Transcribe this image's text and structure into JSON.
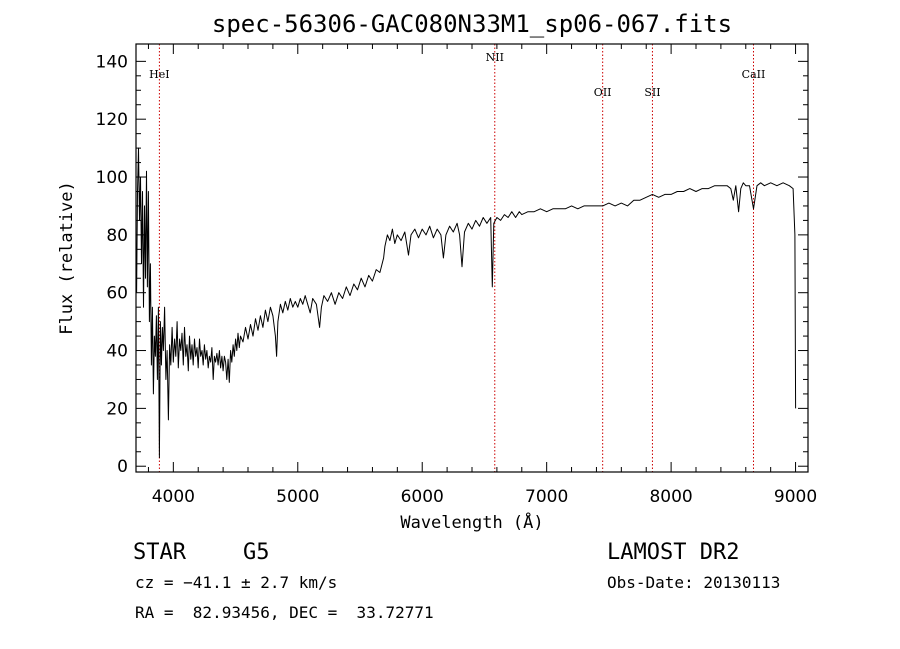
{
  "chart_data": {
    "type": "line",
    "title": "spec-56306-GAC080N33M1_sp06-067.fits",
    "xlabel": "Wavelength (Å)",
    "ylabel": "Flux (relative)",
    "xlim": [
      3700,
      9100
    ],
    "ylim": [
      -2,
      146
    ],
    "x_ticks": [
      4000,
      5000,
      6000,
      7000,
      8000,
      9000
    ],
    "y_ticks": [
      0,
      20,
      40,
      60,
      80,
      100,
      120,
      140
    ],
    "grid": false,
    "line_color": "#000000",
    "marker_color": "#cc0000",
    "series": [
      {
        "values": [
          [
            3705,
            60
          ],
          [
            3712,
            95
          ],
          [
            3720,
            110
          ],
          [
            3728,
            85
          ],
          [
            3736,
            100
          ],
          [
            3744,
            70
          ],
          [
            3752,
            95
          ],
          [
            3760,
            55
          ],
          [
            3768,
            90
          ],
          [
            3776,
            65
          ],
          [
            3784,
            102
          ],
          [
            3792,
            62
          ],
          [
            3800,
            95
          ],
          [
            3808,
            50
          ],
          [
            3816,
            70
          ],
          [
            3824,
            35
          ],
          [
            3832,
            55
          ],
          [
            3840,
            25
          ],
          [
            3848,
            45
          ],
          [
            3856,
            38
          ],
          [
            3864,
            52
          ],
          [
            3872,
            30
          ],
          [
            3880,
            55
          ],
          [
            3888,
            3
          ],
          [
            3896,
            50
          ],
          [
            3904,
            35
          ],
          [
            3912,
            48
          ],
          [
            3920,
            40
          ],
          [
            3930,
            55
          ],
          [
            3940,
            30
          ],
          [
            3950,
            40
          ],
          [
            3960,
            16
          ],
          [
            3970,
            42
          ],
          [
            3980,
            35
          ],
          [
            3990,
            48
          ],
          [
            4000,
            36
          ],
          [
            4010,
            44
          ],
          [
            4020,
            38
          ],
          [
            4030,
            50
          ],
          [
            4040,
            34
          ],
          [
            4050,
            44
          ],
          [
            4060,
            40
          ],
          [
            4070,
            46
          ],
          [
            4080,
            35
          ],
          [
            4090,
            48
          ],
          [
            4100,
            38
          ],
          [
            4110,
            42
          ],
          [
            4120,
            33
          ],
          [
            4130,
            45
          ],
          [
            4140,
            37
          ],
          [
            4150,
            42
          ],
          [
            4160,
            35
          ],
          [
            4170,
            44
          ],
          [
            4180,
            38
          ],
          [
            4190,
            41
          ],
          [
            4200,
            34
          ],
          [
            4210,
            44
          ],
          [
            4220,
            38
          ],
          [
            4230,
            40
          ],
          [
            4240,
            35
          ],
          [
            4250,
            42
          ],
          [
            4260,
            37
          ],
          [
            4270,
            40
          ],
          [
            4280,
            34
          ],
          [
            4290,
            38
          ],
          [
            4300,
            36
          ],
          [
            4310,
            41
          ],
          [
            4320,
            30
          ],
          [
            4330,
            38
          ],
          [
            4340,
            36
          ],
          [
            4350,
            39
          ],
          [
            4360,
            35
          ],
          [
            4370,
            40
          ],
          [
            4380,
            34
          ],
          [
            4390,
            38
          ],
          [
            4400,
            33
          ],
          [
            4410,
            38
          ],
          [
            4420,
            36
          ],
          [
            4430,
            30
          ],
          [
            4440,
            37
          ],
          [
            4450,
            29
          ],
          [
            4460,
            40
          ],
          [
            4470,
            36
          ],
          [
            4480,
            42
          ],
          [
            4490,
            38
          ],
          [
            4500,
            44
          ],
          [
            4510,
            40
          ],
          [
            4520,
            46
          ],
          [
            4530,
            41
          ],
          [
            4540,
            45
          ],
          [
            4560,
            43
          ],
          [
            4580,
            48
          ],
          [
            4600,
            44
          ],
          [
            4620,
            49
          ],
          [
            4640,
            45
          ],
          [
            4660,
            51
          ],
          [
            4680,
            47
          ],
          [
            4700,
            52
          ],
          [
            4720,
            48
          ],
          [
            4740,
            54
          ],
          [
            4760,
            50
          ],
          [
            4780,
            55
          ],
          [
            4800,
            52
          ],
          [
            4820,
            45
          ],
          [
            4830,
            38
          ],
          [
            4840,
            50
          ],
          [
            4860,
            56
          ],
          [
            4880,
            53
          ],
          [
            4900,
            57
          ],
          [
            4920,
            54
          ],
          [
            4940,
            58
          ],
          [
            4960,
            55
          ],
          [
            4980,
            57
          ],
          [
            5000,
            55
          ],
          [
            5020,
            58
          ],
          [
            5040,
            56
          ],
          [
            5060,
            59
          ],
          [
            5080,
            56
          ],
          [
            5100,
            53
          ],
          [
            5120,
            58
          ],
          [
            5150,
            56
          ],
          [
            5175,
            48
          ],
          [
            5190,
            55
          ],
          [
            5210,
            59
          ],
          [
            5240,
            57
          ],
          [
            5270,
            60
          ],
          [
            5300,
            56
          ],
          [
            5330,
            60
          ],
          [
            5360,
            58
          ],
          [
            5390,
            62
          ],
          [
            5420,
            59
          ],
          [
            5450,
            63
          ],
          [
            5480,
            61
          ],
          [
            5510,
            65
          ],
          [
            5540,
            62
          ],
          [
            5570,
            66
          ],
          [
            5600,
            64
          ],
          [
            5630,
            68
          ],
          [
            5660,
            67
          ],
          [
            5690,
            72
          ],
          [
            5700,
            76
          ],
          [
            5720,
            80
          ],
          [
            5740,
            78
          ],
          [
            5760,
            82
          ],
          [
            5780,
            77
          ],
          [
            5800,
            80
          ],
          [
            5830,
            78
          ],
          [
            5860,
            81
          ],
          [
            5890,
            73
          ],
          [
            5910,
            80
          ],
          [
            5940,
            82
          ],
          [
            5970,
            79
          ],
          [
            6000,
            82
          ],
          [
            6030,
            80
          ],
          [
            6060,
            83
          ],
          [
            6090,
            79
          ],
          [
            6120,
            82
          ],
          [
            6150,
            80
          ],
          [
            6170,
            72
          ],
          [
            6190,
            80
          ],
          [
            6220,
            83
          ],
          [
            6250,
            81
          ],
          [
            6280,
            84
          ],
          [
            6300,
            80
          ],
          [
            6320,
            69
          ],
          [
            6340,
            81
          ],
          [
            6370,
            84
          ],
          [
            6400,
            82
          ],
          [
            6430,
            85
          ],
          [
            6460,
            83
          ],
          [
            6490,
            86
          ],
          [
            6520,
            84
          ],
          [
            6550,
            86
          ],
          [
            6563,
            62
          ],
          [
            6575,
            84
          ],
          [
            6600,
            86
          ],
          [
            6630,
            85
          ],
          [
            6660,
            87
          ],
          [
            6690,
            86
          ],
          [
            6720,
            88
          ],
          [
            6750,
            86
          ],
          [
            6780,
            88
          ],
          [
            6800,
            87
          ],
          [
            6850,
            88
          ],
          [
            6900,
            88
          ],
          [
            6950,
            89
          ],
          [
            7000,
            88
          ],
          [
            7050,
            89
          ],
          [
            7100,
            89
          ],
          [
            7150,
            89
          ],
          [
            7200,
            90
          ],
          [
            7250,
            89
          ],
          [
            7300,
            90
          ],
          [
            7350,
            90
          ],
          [
            7400,
            90
          ],
          [
            7450,
            90
          ],
          [
            7500,
            91
          ],
          [
            7550,
            90
          ],
          [
            7600,
            91
          ],
          [
            7650,
            90
          ],
          [
            7700,
            92
          ],
          [
            7750,
            92
          ],
          [
            7800,
            93
          ],
          [
            7850,
            94
          ],
          [
            7900,
            93
          ],
          [
            7950,
            94
          ],
          [
            8000,
            94
          ],
          [
            8050,
            95
          ],
          [
            8100,
            95
          ],
          [
            8150,
            96
          ],
          [
            8200,
            95
          ],
          [
            8250,
            96
          ],
          [
            8300,
            96
          ],
          [
            8350,
            97
          ],
          [
            8400,
            97
          ],
          [
            8450,
            97
          ],
          [
            8480,
            96
          ],
          [
            8500,
            92
          ],
          [
            8520,
            97
          ],
          [
            8542,
            88
          ],
          [
            8560,
            96
          ],
          [
            8580,
            98
          ],
          [
            8600,
            97
          ],
          [
            8630,
            97
          ],
          [
            8662,
            89
          ],
          [
            8690,
            97
          ],
          [
            8720,
            98
          ],
          [
            8750,
            97
          ],
          [
            8800,
            98
          ],
          [
            8850,
            97
          ],
          [
            8900,
            98
          ],
          [
            8950,
            97
          ],
          [
            8980,
            96
          ],
          [
            8995,
            80
          ],
          [
            9000,
            20
          ]
        ]
      }
    ],
    "line_markers": [
      {
        "label": "HeI",
        "wavelength": 3888
      },
      {
        "label": "NII",
        "wavelength": 6583
      },
      {
        "label": "OII",
        "wavelength": 7450
      },
      {
        "label": "SII",
        "wavelength": 7850
      },
      {
        "label": "CaII",
        "wavelength": 8662
      }
    ]
  },
  "info": {
    "object_type": "STAR",
    "subclass": "G5",
    "survey": "LAMOST DR2",
    "cz": "cz = −41.1 ± 2.7 km/s",
    "obs_date": "Obs-Date: 20130113",
    "coords": "RA =  82.93456, DEC =  33.72771"
  }
}
